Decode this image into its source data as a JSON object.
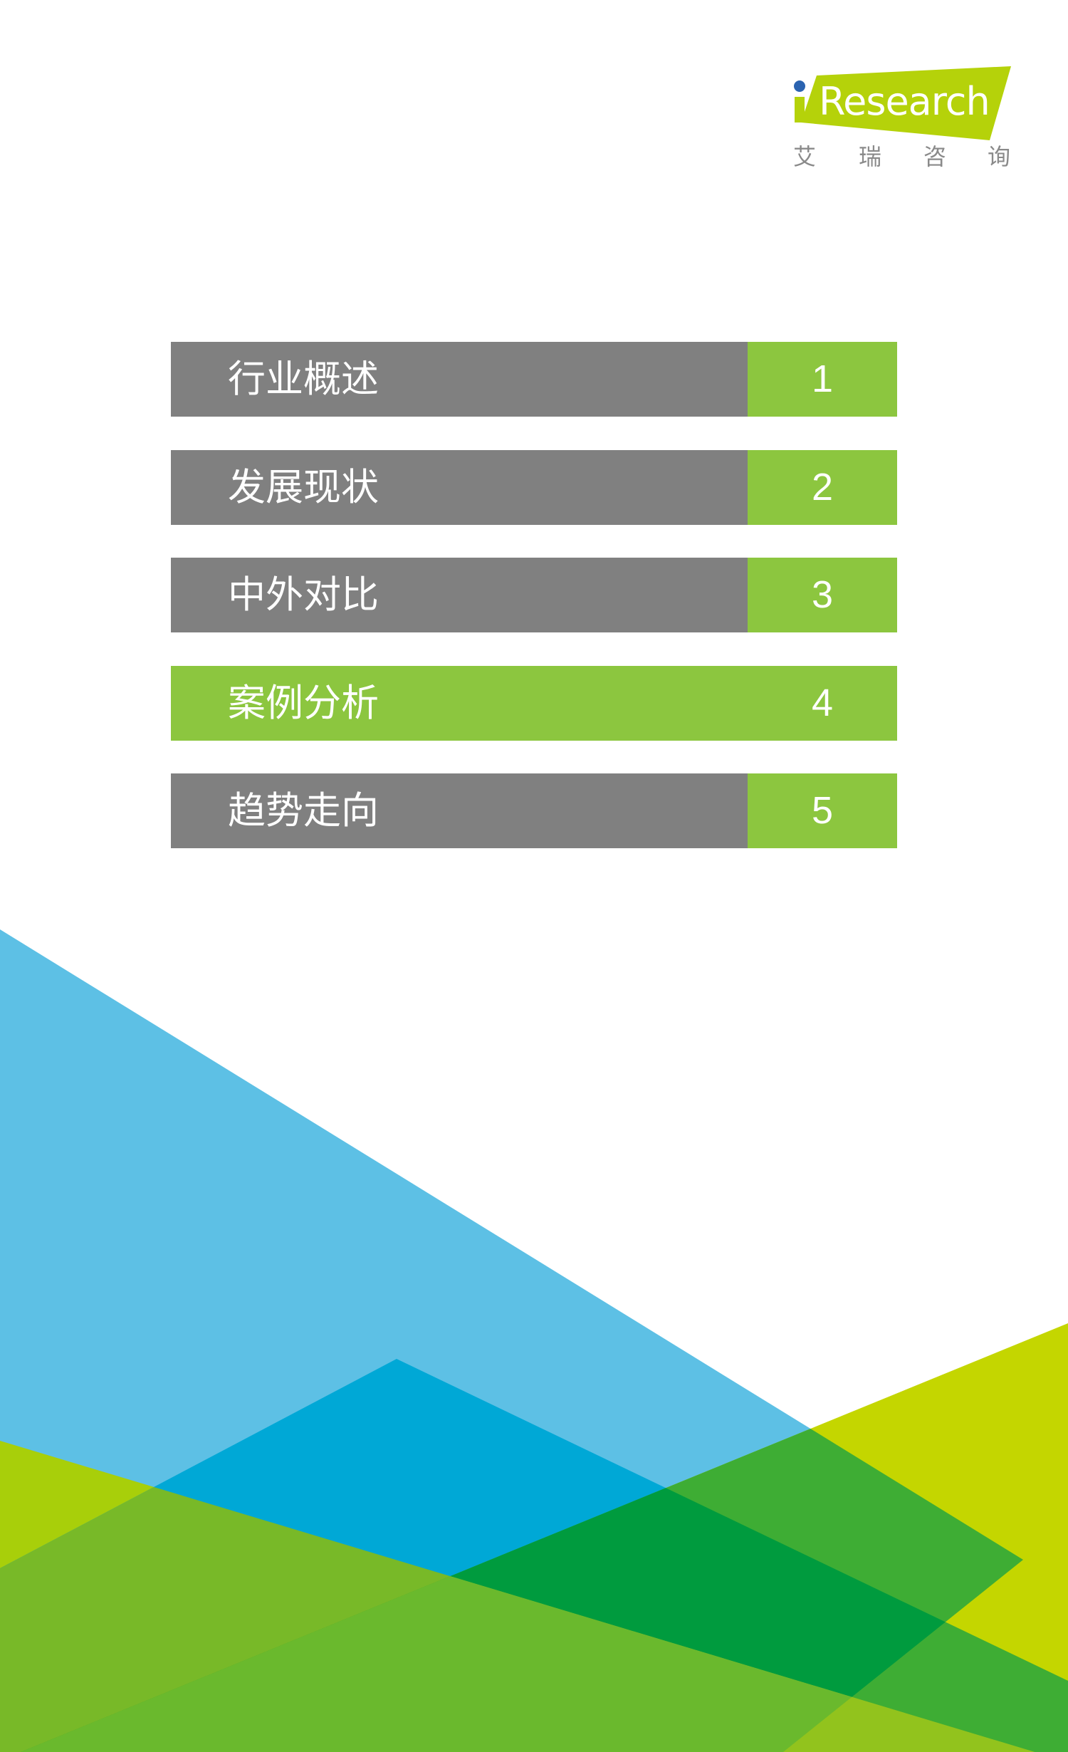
{
  "logo": {
    "brand": "iResearch",
    "brand_text": "Research",
    "chinese": [
      "艾",
      "瑞",
      "咨",
      "询"
    ],
    "colors": {
      "lime": "#B5D20A",
      "dot": "#2B63B0"
    }
  },
  "menu": {
    "items": [
      {
        "label": "行业概述",
        "number": "1",
        "active": false
      },
      {
        "label": "发展现状",
        "number": "2",
        "active": false
      },
      {
        "label": "中外对比",
        "number": "3",
        "active": false
      },
      {
        "label": "案例分析",
        "number": "4",
        "active": true
      },
      {
        "label": "趋势走向",
        "number": "5",
        "active": false
      }
    ],
    "colors": {
      "inactive": "#808080",
      "active": "#8CC63F"
    }
  },
  "background_colors": [
    "#5DC0E5",
    "#00A8D6",
    "#C4D600",
    "#A8CF0A",
    "#3EAD34",
    "#009B3E",
    "#78B928",
    "#6AB92D",
    "#92C31D"
  ]
}
